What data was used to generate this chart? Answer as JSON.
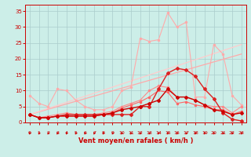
{
  "title": "",
  "xlabel": "Vent moyen/en rafales ( km/h )",
  "ylabel": "",
  "background_color": "#cceee8",
  "grid_color": "#aacccc",
  "xlim": [
    -0.5,
    23.5
  ],
  "ylim": [
    0,
    37
  ],
  "xticks": [
    0,
    1,
    2,
    3,
    4,
    5,
    6,
    7,
    8,
    9,
    10,
    11,
    12,
    13,
    14,
    15,
    16,
    17,
    18,
    19,
    20,
    21,
    22,
    23
  ],
  "yticks": [
    0,
    5,
    10,
    15,
    20,
    25,
    30,
    35
  ],
  "series": [
    {
      "color": "#ffaaaa",
      "linewidth": 0.8,
      "marker": "o",
      "markersize": 1.5,
      "x": [
        0,
        1,
        2,
        3,
        4,
        5,
        6,
        7,
        8,
        9,
        10,
        11,
        12,
        13,
        14,
        15,
        16,
        17,
        18,
        19,
        20,
        21,
        22,
        23
      ],
      "y": [
        8.5,
        6.0,
        5.0,
        10.5,
        10.0,
        7.0,
        5.0,
        4.0,
        4.0,
        5.0,
        10.0,
        11.0,
        26.5,
        25.5,
        26.0,
        34.5,
        30.0,
        31.5,
        8.0,
        8.0,
        24.5,
        21.5,
        8.5,
        5.5
      ]
    },
    {
      "color": "#ff8888",
      "linewidth": 0.8,
      "marker": "o",
      "markersize": 1.5,
      "x": [
        0,
        1,
        2,
        3,
        4,
        5,
        6,
        7,
        8,
        9,
        10,
        11,
        12,
        13,
        14,
        15,
        16,
        17,
        18,
        19,
        20,
        21,
        22,
        23
      ],
      "y": [
        2.5,
        1.5,
        2.0,
        2.5,
        3.0,
        2.5,
        2.5,
        2.5,
        3.0,
        3.5,
        5.0,
        6.0,
        7.0,
        10.0,
        11.5,
        11.0,
        8.0,
        8.0,
        7.0,
        5.5,
        5.0,
        5.0,
        3.0,
        5.0
      ]
    },
    {
      "color": "#ff6666",
      "linewidth": 0.8,
      "marker": "o",
      "markersize": 1.5,
      "x": [
        0,
        1,
        2,
        3,
        4,
        5,
        6,
        7,
        8,
        9,
        10,
        11,
        12,
        13,
        14,
        15,
        16,
        17,
        18,
        19,
        20,
        21,
        22,
        23
      ],
      "y": [
        2.5,
        1.5,
        1.5,
        2.0,
        2.0,
        2.0,
        2.0,
        2.0,
        2.5,
        3.0,
        4.5,
        5.5,
        6.5,
        8.0,
        10.0,
        9.5,
        6.0,
        6.5,
        5.5,
        5.0,
        4.0,
        4.0,
        2.5,
        3.5
      ]
    },
    {
      "color": "#dd2222",
      "linewidth": 1.0,
      "marker": "D",
      "markersize": 2.0,
      "x": [
        0,
        1,
        2,
        3,
        4,
        5,
        6,
        7,
        8,
        9,
        10,
        11,
        12,
        13,
        14,
        15,
        16,
        17,
        18,
        19,
        20,
        21,
        22,
        23
      ],
      "y": [
        2.5,
        1.5,
        1.5,
        2.0,
        2.5,
        2.5,
        2.5,
        2.5,
        2.5,
        2.5,
        2.5,
        2.5,
        5.0,
        5.0,
        10.5,
        15.5,
        17.0,
        16.5,
        14.5,
        10.5,
        7.5,
        3.0,
        1.0,
        0.5
      ]
    },
    {
      "color": "#cc0000",
      "linewidth": 1.0,
      "marker": "D",
      "markersize": 2.0,
      "x": [
        0,
        1,
        2,
        3,
        4,
        5,
        6,
        7,
        8,
        9,
        10,
        11,
        12,
        13,
        14,
        15,
        16,
        17,
        18,
        19,
        20,
        21,
        22,
        23
      ],
      "y": [
        2.5,
        1.5,
        1.5,
        2.0,
        2.0,
        2.0,
        2.0,
        2.0,
        2.5,
        3.0,
        4.0,
        4.5,
        5.0,
        6.0,
        7.0,
        10.5,
        8.0,
        8.0,
        7.0,
        5.5,
        4.0,
        3.5,
        2.5,
        3.0
      ]
    },
    {
      "color": "#ffaaaa",
      "linewidth": 0.9,
      "marker": null,
      "x": [
        0,
        23
      ],
      "y": [
        2.5,
        21.5
      ]
    },
    {
      "color": "#ffcccc",
      "linewidth": 0.9,
      "marker": null,
      "x": [
        0,
        23
      ],
      "y": [
        2.5,
        24.5
      ]
    }
  ],
  "tick_color": "#cc0000",
  "label_color": "#cc0000",
  "xlabel_fontsize": 6,
  "xlabel_fontweight": "bold",
  "tick_fontsize": 4.5,
  "ytick_fontsize": 5.0
}
